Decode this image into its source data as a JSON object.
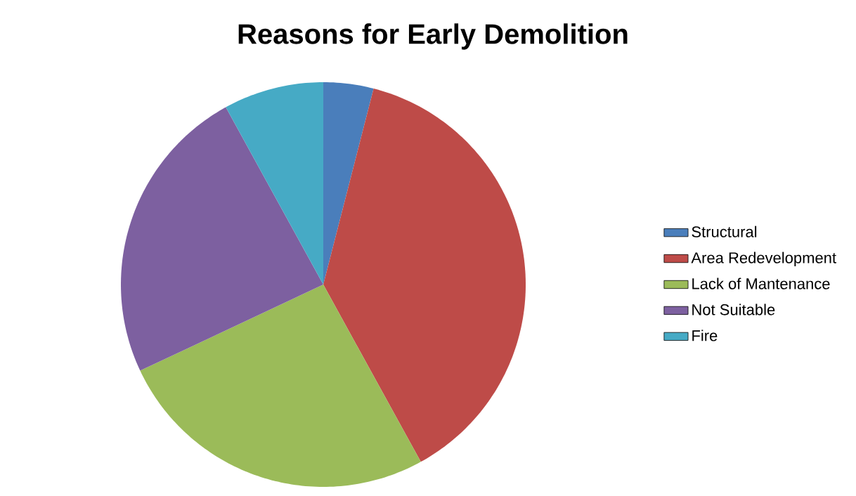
{
  "chart_data": {
    "type": "pie",
    "title": "Reasons for Early Demolition",
    "categories": [
      "Structural",
      "Area Redevelopment",
      "Lack of Mantenance",
      "Not Suitable",
      "Fire"
    ],
    "values": [
      4,
      38,
      26,
      24,
      8
    ],
    "colors": [
      "#4a7ebb",
      "#be4b48",
      "#9bbb59",
      "#7d60a0",
      "#46aac5"
    ],
    "legend": "right"
  }
}
